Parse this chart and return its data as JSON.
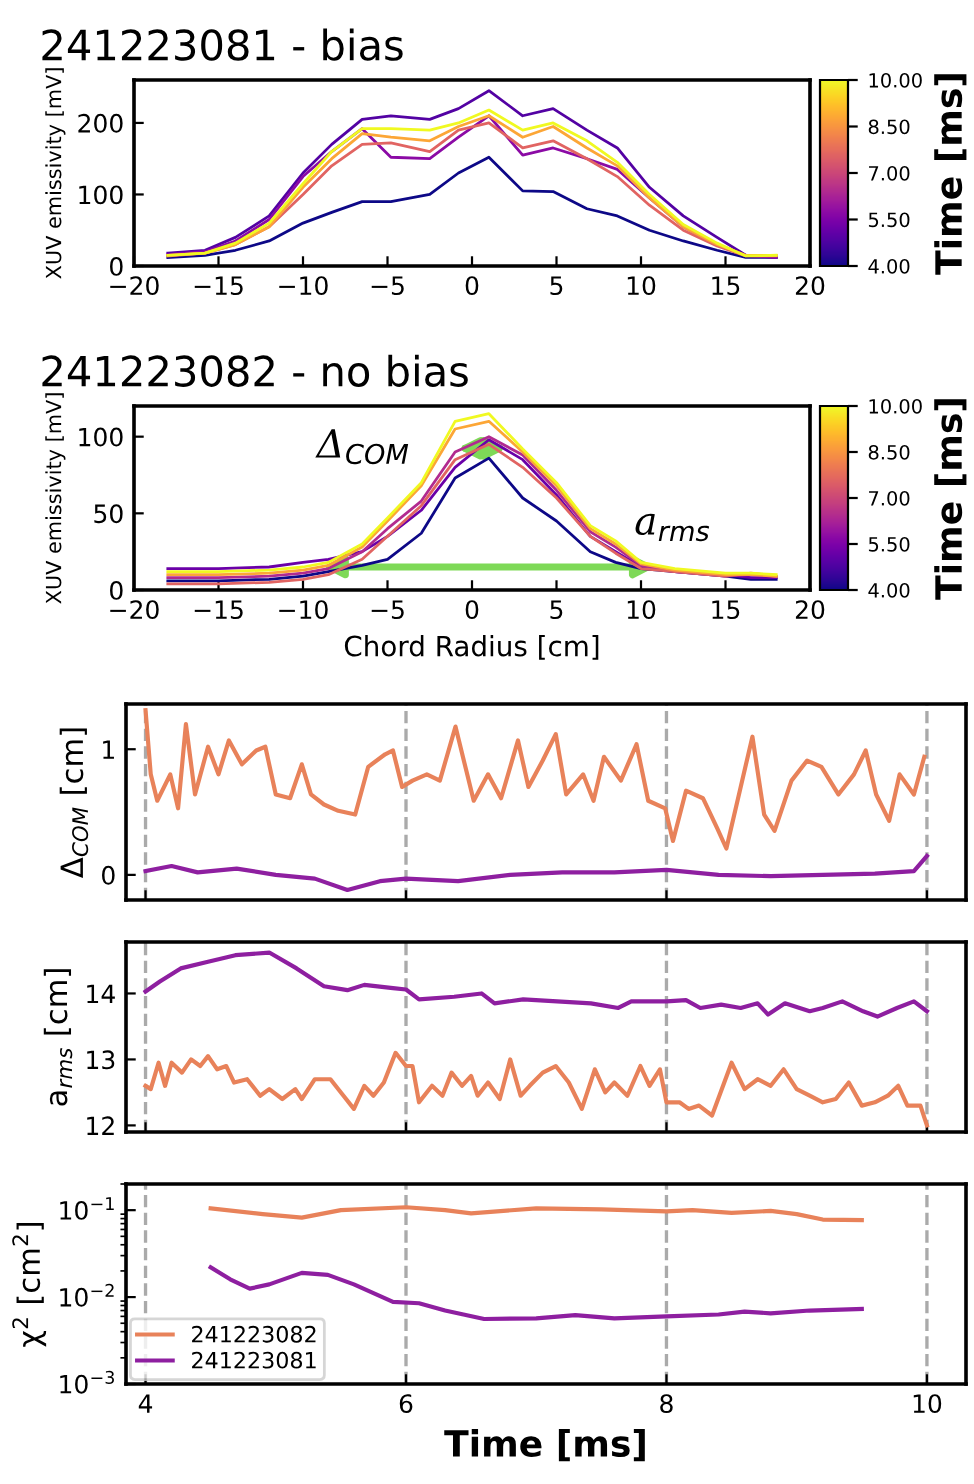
{
  "chart_data": [
    {
      "type": "line",
      "title": "241223081 - bias",
      "ylabel": "XUV emissivity [mV]",
      "clabel": "Time [ms]",
      "clim": [
        4,
        10
      ],
      "cticks": [
        {
          "value": 4,
          "label": "4.00"
        },
        {
          "value": 5.5,
          "label": "5.50"
        },
        {
          "value": 7,
          "label": "7.00"
        },
        {
          "value": 8.5,
          "label": "8.50"
        },
        {
          "value": 10,
          "label": "10.00"
        }
      ],
      "x": [
        -18,
        -15.8,
        -14,
        -12,
        -10,
        -8.3,
        -6.5,
        -4.8,
        -2.5,
        -0.8,
        1,
        3,
        4.8,
        6.8,
        8.6,
        10.5,
        12.5,
        14.5,
        16.2,
        18
      ],
      "xlim": [
        -20,
        20
      ],
      "xticks": [
        {
          "value": -20,
          "label": "−20"
        },
        {
          "value": -15,
          "label": "−15"
        },
        {
          "value": -10,
          "label": "−10"
        },
        {
          "value": -5,
          "label": "−5"
        },
        0,
        5,
        10,
        15,
        20
      ],
      "ylim": [
        0,
        260
      ],
      "yticks": [
        0,
        100,
        200
      ],
      "series": [
        {
          "color": "#0d0887",
          "values": [
            12,
            15,
            22,
            35,
            60,
            75,
            90,
            90,
            100,
            130,
            152,
            105,
            104,
            80,
            70,
            50,
            35,
            22,
            12,
            12
          ]
        },
        {
          "color": "#5302a3",
          "values": [
            18,
            22,
            40,
            70,
            130,
            170,
            205,
            210,
            205,
            220,
            245,
            210,
            220,
            190,
            165,
            110,
            70,
            40,
            15,
            12
          ]
        },
        {
          "color": "#8b0aa5",
          "values": [
            16,
            20,
            35,
            65,
            125,
            160,
            192,
            152,
            150,
            180,
            210,
            155,
            165,
            150,
            135,
            95,
            55,
            30,
            15,
            12
          ]
        },
        {
          "color": "#e16462",
          "values": [
            14,
            18,
            30,
            55,
            100,
            140,
            170,
            172,
            160,
            190,
            200,
            165,
            175,
            150,
            125,
            85,
            50,
            28,
            14,
            14
          ]
        },
        {
          "color": "#fca636",
          "values": [
            15,
            18,
            30,
            55,
            110,
            150,
            185,
            180,
            175,
            195,
            210,
            180,
            195,
            165,
            140,
            95,
            55,
            30,
            15,
            15
          ]
        },
        {
          "color": "#f0f921",
          "values": [
            15,
            18,
            32,
            60,
            115,
            160,
            192,
            192,
            190,
            200,
            218,
            190,
            200,
            175,
            145,
            100,
            58,
            32,
            14,
            15
          ]
        }
      ]
    },
    {
      "type": "line",
      "title": "241223082 - no bias",
      "xlabel": "Chord Radius [cm]",
      "ylabel": "XUV emissivity [mV]",
      "clabel": "Time [ms]",
      "clim": [
        4,
        10
      ],
      "cticks": [
        {
          "value": 4,
          "label": "4.00"
        },
        {
          "value": 5.5,
          "label": "5.50"
        },
        {
          "value": 7,
          "label": "7.00"
        },
        {
          "value": 8.5,
          "label": "8.50"
        },
        {
          "value": 10,
          "label": "10.00"
        }
      ],
      "x": [
        -18,
        -15,
        -12,
        -10,
        -8.5,
        -6.5,
        -5,
        -3,
        -1,
        1,
        3,
        5,
        7,
        8.5,
        10,
        12,
        15,
        16.5,
        18
      ],
      "xlim": [
        -20,
        20
      ],
      "xticks": [
        {
          "value": -20,
          "label": "−20"
        },
        {
          "value": -15,
          "label": "−15"
        },
        {
          "value": -10,
          "label": "−10"
        },
        {
          "value": -5,
          "label": "−5"
        },
        0,
        5,
        10,
        15,
        20
      ],
      "ylim": [
        0,
        120
      ],
      "yticks": [
        0,
        50,
        100
      ],
      "annotations": [
        "Δ$_{COM}$",
        "a$_{rms}$"
      ],
      "series": [
        {
          "color": "#0d0887",
          "values": [
            6,
            6,
            7,
            9,
            12,
            16,
            20,
            37,
            73,
            86,
            60,
            45,
            25,
            18,
            14,
            12,
            9,
            7,
            7
          ]
        },
        {
          "color": "#6a00a8",
          "values": [
            14,
            14,
            15,
            18,
            20,
            25,
            35,
            52,
            80,
            98,
            85,
            62,
            35,
            25,
            15,
            12,
            10,
            8,
            8
          ]
        },
        {
          "color": "#b12a90",
          "values": [
            8,
            8,
            9,
            11,
            14,
            25,
            40,
            58,
            90,
            100,
            88,
            65,
            38,
            28,
            16,
            12,
            9,
            10,
            9
          ]
        },
        {
          "color": "#e16462",
          "values": [
            4,
            4,
            5,
            7,
            10,
            20,
            35,
            55,
            85,
            95,
            80,
            60,
            35,
            24,
            14,
            12,
            9,
            11,
            9
          ]
        },
        {
          "color": "#fca636",
          "values": [
            10,
            10,
            11,
            13,
            16,
            28,
            45,
            68,
            105,
            110,
            90,
            68,
            40,
            30,
            17,
            13,
            10,
            10,
            9
          ]
        },
        {
          "color": "#f0f921",
          "values": [
            12,
            12,
            13,
            15,
            18,
            30,
            47,
            70,
            110,
            115,
            92,
            70,
            42,
            32,
            18,
            14,
            11,
            11,
            10
          ]
        }
      ]
    },
    {
      "type": "line",
      "ylabel": "Δ$_{COM}$ [cm]",
      "xlim": [
        3.85,
        10.3
      ],
      "xticks": [
        4,
        6,
        8,
        10
      ],
      "ylim": [
        -0.2,
        1.36
      ],
      "yticks": [
        0,
        1
      ],
      "tick_labels": "y",
      "ref_lines": [
        {
          "axis": "x",
          "value": 4,
          "color": "#aaaaaa",
          "line_style": "dashed"
        },
        {
          "axis": "x",
          "value": 6,
          "color": "#aaaaaa",
          "line_style": "dashed"
        },
        {
          "axis": "x",
          "value": 8,
          "color": "#aaaaaa",
          "line_style": "dashed"
        },
        {
          "axis": "x",
          "value": 10,
          "color": "#aaaaaa",
          "line_style": "dashed"
        }
      ],
      "series": [
        {
          "color": "#e8825a",
          "x": [
            4.0,
            4.04,
            4.09,
            4.19,
            4.25,
            4.31,
            4.38,
            4.48,
            4.56,
            4.64,
            4.74,
            4.85,
            4.92,
            5.0,
            5.11,
            5.2,
            5.27,
            5.37,
            5.48,
            5.61,
            5.71,
            5.84,
            5.9,
            5.97,
            6.05,
            6.16,
            6.26,
            6.38,
            6.47,
            6.52,
            6.63,
            6.73,
            6.86,
            6.94,
            7.05,
            7.15,
            7.23,
            7.36,
            7.44,
            7.52,
            7.65,
            7.77,
            7.86,
            7.99,
            8.05,
            8.15,
            8.28,
            8.39,
            8.46,
            8.57,
            8.66,
            8.75,
            8.83,
            8.96,
            9.08,
            9.19,
            9.32,
            9.44,
            9.53,
            9.61,
            9.71,
            9.79,
            9.9,
            9.98
          ],
          "values": [
            1.31,
            0.8,
            0.59,
            0.8,
            0.53,
            1.2,
            0.64,
            1.02,
            0.8,
            1.07,
            0.88,
            0.99,
            1.02,
            0.64,
            0.61,
            0.88,
            0.64,
            0.56,
            0.51,
            0.48,
            0.86,
            0.96,
            0.99,
            0.7,
            0.75,
            0.8,
            0.75,
            1.18,
            0.8,
            0.59,
            0.8,
            0.61,
            1.07,
            0.7,
            0.91,
            1.12,
            0.64,
            0.8,
            0.59,
            0.94,
            0.75,
            1.04,
            0.59,
            0.53,
            0.27,
            0.67,
            0.61,
            0.37,
            0.21,
            0.7,
            1.1,
            0.48,
            0.35,
            0.75,
            0.91,
            0.86,
            0.64,
            0.8,
            0.99,
            0.64,
            0.43,
            0.8,
            0.64,
            0.94
          ]
        },
        {
          "color": "#8e1fa0",
          "x": [
            4.0,
            4.2,
            4.4,
            4.7,
            5.0,
            5.3,
            5.55,
            5.8,
            6.0,
            6.4,
            6.8,
            7.2,
            7.6,
            8.0,
            8.4,
            8.8,
            9.2,
            9.6,
            9.9,
            10.0
          ],
          "values": [
            0.03,
            0.07,
            0.02,
            0.05,
            0.0,
            -0.03,
            -0.12,
            -0.05,
            -0.03,
            -0.05,
            0.0,
            0.02,
            0.02,
            0.04,
            0.0,
            -0.01,
            0.0,
            0.01,
            0.03,
            0.15
          ]
        }
      ]
    },
    {
      "type": "line",
      "ylabel": "a$_{rms}$ [cm]",
      "xlim": [
        3.85,
        10.3
      ],
      "xticks": [
        4,
        6,
        8,
        10
      ],
      "ylim": [
        11.9,
        14.78
      ],
      "yticks": [
        12,
        13,
        14
      ],
      "tick_labels": "y",
      "ref_lines": [
        {
          "axis": "x",
          "value": 4,
          "color": "#aaaaaa",
          "line_style": "dashed"
        },
        {
          "axis": "x",
          "value": 6,
          "color": "#aaaaaa",
          "line_style": "dashed"
        },
        {
          "axis": "x",
          "value": 8,
          "color": "#aaaaaa",
          "line_style": "dashed"
        },
        {
          "axis": "x",
          "value": 10,
          "color": "#aaaaaa",
          "line_style": "dashed"
        }
      ],
      "series": [
        {
          "color": "#8e1fa0",
          "x": [
            4.0,
            4.11,
            4.27,
            4.48,
            4.69,
            4.95,
            5.16,
            5.37,
            5.55,
            5.68,
            5.9,
            6.0,
            6.1,
            6.37,
            6.58,
            6.68,
            6.9,
            7.16,
            7.42,
            7.63,
            7.73,
            8.0,
            8.15,
            8.26,
            8.42,
            8.57,
            8.7,
            8.78,
            8.91,
            9.1,
            9.2,
            9.35,
            9.51,
            9.62,
            9.77,
            9.9,
            10.0
          ],
          "values": [
            14.03,
            14.18,
            14.38,
            14.48,
            14.58,
            14.62,
            14.38,
            14.11,
            14.05,
            14.13,
            14.08,
            14.06,
            13.91,
            13.95,
            14.0,
            13.85,
            13.91,
            13.88,
            13.85,
            13.78,
            13.88,
            13.88,
            13.9,
            13.78,
            13.83,
            13.78,
            13.85,
            13.68,
            13.85,
            13.73,
            13.78,
            13.88,
            13.73,
            13.65,
            13.78,
            13.88,
            13.73
          ]
        },
        {
          "color": "#e8825a",
          "x": [
            4.0,
            4.04,
            4.1,
            4.15,
            4.2,
            4.28,
            4.35,
            4.42,
            4.48,
            4.55,
            4.62,
            4.68,
            4.78,
            4.88,
            4.95,
            5.05,
            5.15,
            5.2,
            5.3,
            5.42,
            5.52,
            5.6,
            5.68,
            5.75,
            5.83,
            5.92,
            6.0,
            6.05,
            6.1,
            6.2,
            6.28,
            6.35,
            6.43,
            6.5,
            6.55,
            6.63,
            6.72,
            6.8,
            6.88,
            6.95,
            7.05,
            7.15,
            7.25,
            7.35,
            7.45,
            7.53,
            7.6,
            7.7,
            7.8,
            7.87,
            7.95,
            8.0,
            8.1,
            8.17,
            8.25,
            8.35,
            8.5,
            8.6,
            8.7,
            8.8,
            8.9,
            9.0,
            9.1,
            9.2,
            9.3,
            9.4,
            9.5,
            9.6,
            9.7,
            9.78,
            9.85,
            9.95,
            10.0
          ],
          "values": [
            12.6,
            12.55,
            12.95,
            12.6,
            12.95,
            12.8,
            13.0,
            12.9,
            13.05,
            12.85,
            12.9,
            12.65,
            12.7,
            12.45,
            12.55,
            12.4,
            12.55,
            12.4,
            12.7,
            12.7,
            12.45,
            12.25,
            12.6,
            12.45,
            12.65,
            13.1,
            12.9,
            12.9,
            12.35,
            12.6,
            12.45,
            12.8,
            12.6,
            12.75,
            12.45,
            12.65,
            12.4,
            13.0,
            12.45,
            12.6,
            12.8,
            12.9,
            12.65,
            12.25,
            12.85,
            12.5,
            12.65,
            12.45,
            12.9,
            12.6,
            12.85,
            12.35,
            12.35,
            12.25,
            12.3,
            12.15,
            12.95,
            12.55,
            12.7,
            12.6,
            12.85,
            12.55,
            12.45,
            12.35,
            12.4,
            12.65,
            12.3,
            12.35,
            12.45,
            12.6,
            12.3,
            12.3,
            12.0
          ]
        }
      ]
    },
    {
      "type": "line",
      "xlabel": "Time [ms]",
      "ylabel": "χ$^{2}$ [cm$^{2}$]",
      "log": "y",
      "xlim": [
        3.85,
        10.3
      ],
      "xticks": [
        4,
        6,
        8,
        10
      ],
      "ylim": [
        0.001,
        0.2
      ],
      "yticks": [
        {
          "value": 0.001,
          "label": "10$^{−3}$"
        },
        {
          "value": 0.01,
          "label": "10$^{−2}$"
        },
        {
          "value": 0.1,
          "label": "10$^{−1}$"
        }
      ],
      "legend": "bottom left",
      "ref_lines": [
        {
          "axis": "x",
          "value": 4,
          "color": "#aaaaaa",
          "line_style": "dashed"
        },
        {
          "axis": "x",
          "value": 6,
          "color": "#aaaaaa",
          "line_style": "dashed"
        },
        {
          "axis": "x",
          "value": 8,
          "color": "#aaaaaa",
          "line_style": "dashed"
        },
        {
          "axis": "x",
          "value": 10,
          "color": "#aaaaaa",
          "line_style": "dashed"
        }
      ],
      "series": [
        {
          "name": "241223082",
          "color": "#e8825a",
          "x": [
            4.5,
            4.9,
            5.2,
            5.5,
            6.0,
            6.3,
            6.5,
            7.0,
            7.5,
            8.0,
            8.2,
            8.5,
            8.8,
            9.0,
            9.2,
            9.5
          ],
          "values": [
            0.105,
            0.09,
            0.082,
            0.1,
            0.108,
            0.1,
            0.092,
            0.105,
            0.102,
            0.097,
            0.1,
            0.093,
            0.098,
            0.09,
            0.078,
            0.077
          ]
        },
        {
          "name": "241223081",
          "color": "#8e1fa0",
          "x": [
            4.5,
            4.65,
            4.8,
            4.95,
            5.2,
            5.4,
            5.6,
            5.9,
            6.1,
            6.3,
            6.6,
            7.0,
            7.3,
            7.6,
            8.0,
            8.4,
            8.6,
            8.8,
            9.1,
            9.5
          ],
          "values": [
            0.022,
            0.016,
            0.0125,
            0.014,
            0.019,
            0.018,
            0.014,
            0.0088,
            0.0085,
            0.007,
            0.0056,
            0.0057,
            0.0062,
            0.0057,
            0.006,
            0.0063,
            0.0068,
            0.0065,
            0.007,
            0.0073
          ]
        }
      ]
    }
  ]
}
